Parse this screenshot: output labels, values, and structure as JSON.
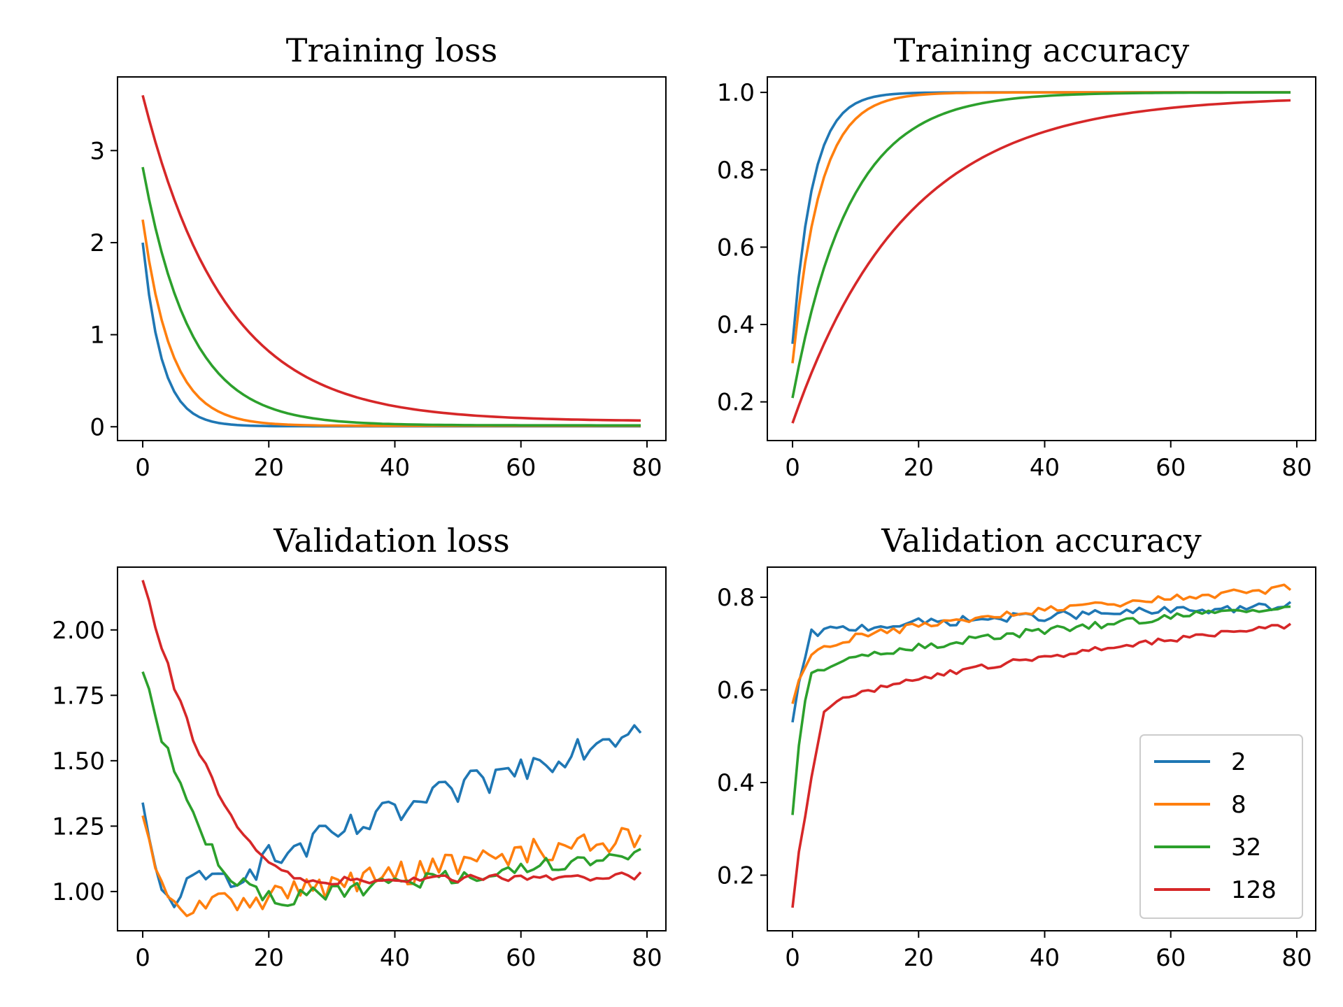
{
  "colors": {
    "s2": "#1f77b4",
    "s8": "#ff7f0e",
    "s32": "#2ca02c",
    "s128": "#d62728"
  },
  "chart_data": [
    {
      "type": "line",
      "title": "Training loss",
      "xlim": [
        -4,
        83
      ],
      "ylim": [
        -0.15,
        3.8
      ],
      "xticks": [
        0,
        20,
        40,
        60,
        80
      ],
      "yticks": [
        0,
        1,
        2,
        3
      ],
      "ytick_labels": [
        "0",
        "1",
        "2",
        "3"
      ],
      "series": [
        {
          "name": "2",
          "color": "#1f77b4",
          "model": {
            "kind": "exp",
            "start": 2.0,
            "end": 0.005,
            "tau": 3.0,
            "noise": 0
          }
        },
        {
          "name": "8",
          "color": "#ff7f0e",
          "model": {
            "kind": "exp",
            "start": 2.25,
            "end": 0.01,
            "tau": 4.5,
            "noise": 0
          }
        },
        {
          "name": "32",
          "color": "#2ca02c",
          "model": {
            "kind": "exp",
            "start": 2.82,
            "end": 0.015,
            "tau": 7.5,
            "noise": 0
          }
        },
        {
          "name": "128",
          "color": "#d62728",
          "model": {
            "kind": "exp",
            "start": 3.6,
            "end": 0.06,
            "tau": 13.0,
            "noise": 0
          }
        }
      ]
    },
    {
      "type": "line",
      "title": "Training accuracy",
      "xlim": [
        -4,
        83
      ],
      "ylim": [
        0.1,
        1.04
      ],
      "xticks": [
        0,
        20,
        40,
        60,
        80
      ],
      "yticks": [
        0.2,
        0.4,
        0.6,
        0.8,
        1.0
      ],
      "ytick_labels": [
        "0.2",
        "0.4",
        "0.6",
        "0.8",
        "1.0"
      ],
      "series": [
        {
          "name": "2",
          "color": "#1f77b4",
          "model": {
            "kind": "exp",
            "start": 0.35,
            "end": 1.0,
            "tau": 3.2,
            "noise": 0
          }
        },
        {
          "name": "8",
          "color": "#ff7f0e",
          "model": {
            "kind": "exp",
            "start": 0.3,
            "end": 1.0,
            "tau": 4.3,
            "noise": 0
          }
        },
        {
          "name": "32",
          "color": "#2ca02c",
          "model": {
            "kind": "exp",
            "start": 0.21,
            "end": 1.0,
            "tau": 9.0,
            "noise": 0
          }
        },
        {
          "name": "128",
          "color": "#d62728",
          "model": {
            "kind": "exp",
            "start": 0.145,
            "end": 0.99,
            "tau": 18.0,
            "noise": 0
          }
        }
      ]
    },
    {
      "type": "line",
      "title": "Validation loss",
      "xlim": [
        -4,
        83
      ],
      "ylim": [
        0.85,
        2.24
      ],
      "xticks": [
        0,
        20,
        40,
        60,
        80
      ],
      "yticks": [
        1.0,
        1.25,
        1.5,
        1.75,
        2.0
      ],
      "ytick_labels": [
        "1.00",
        "1.25",
        "1.50",
        "1.75",
        "2.00"
      ],
      "series": [
        {
          "name": "2",
          "color": "#1f77b4",
          "model": {
            "kind": "vloss",
            "start": 1.34,
            "min": 0.98,
            "minx": 4,
            "endv": 1.64,
            "noise": 0.06
          }
        },
        {
          "name": "8",
          "color": "#ff7f0e",
          "model": {
            "kind": "vloss",
            "start": 1.29,
            "min": 0.93,
            "minx": 6,
            "endv": 1.22,
            "noise": 0.05
          }
        },
        {
          "name": "32",
          "color": "#2ca02c",
          "model": {
            "kind": "vloss",
            "start": 1.84,
            "min": 0.97,
            "minx": 22,
            "endv": 1.15,
            "noise": 0.03
          }
        },
        {
          "name": "128",
          "color": "#d62728",
          "model": {
            "kind": "vloss",
            "start": 2.19,
            "min": 1.04,
            "minx": 28,
            "endv": 1.06,
            "noise": 0.015
          }
        }
      ]
    },
    {
      "type": "line",
      "title": "Validation accuracy",
      "xlim": [
        -4,
        83
      ],
      "ylim": [
        0.08,
        0.865
      ],
      "xticks": [
        0,
        20,
        40,
        60,
        80
      ],
      "yticks": [
        0.2,
        0.4,
        0.6,
        0.8
      ],
      "ytick_labels": [
        "0.2",
        "0.4",
        "0.6",
        "0.8"
      ],
      "legend": {
        "position": "lower-right",
        "labels": [
          "2",
          "8",
          "32",
          "128"
        ]
      },
      "series": [
        {
          "name": "2",
          "color": "#1f77b4",
          "model": {
            "kind": "vacc",
            "start": 0.53,
            "plateau": 0.72,
            "rise": 3,
            "endv": 0.78,
            "noise": 0.01
          }
        },
        {
          "name": "8",
          "color": "#ff7f0e",
          "model": {
            "kind": "vacc",
            "start": 0.57,
            "plateau": 0.68,
            "rise": 3,
            "endv": 0.82,
            "noise": 0.008
          }
        },
        {
          "name": "32",
          "color": "#2ca02c",
          "model": {
            "kind": "vacc",
            "start": 0.33,
            "plateau": 0.63,
            "rise": 2.5,
            "endv": 0.78,
            "noise": 0.008
          }
        },
        {
          "name": "128",
          "color": "#d62728",
          "model": {
            "kind": "vacc",
            "start": 0.13,
            "plateau": 0.55,
            "rise": 5,
            "endv": 0.74,
            "noise": 0.006
          }
        }
      ]
    }
  ]
}
